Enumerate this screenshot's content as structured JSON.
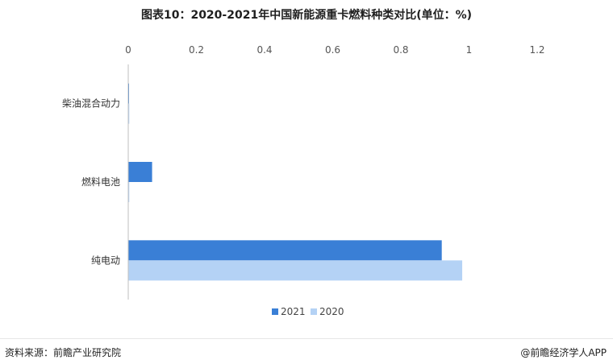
{
  "chart_data": {
    "type": "bar",
    "orientation": "horizontal",
    "title": "图表10：2020-2021年中国新能源重卡燃料种类对比(单位：%)",
    "categories": [
      "柴油混合动力",
      "燃料电池",
      "纯电动"
    ],
    "series": [
      {
        "name": "2021",
        "color": "#3a7fd6",
        "values": [
          0.0,
          0.07,
          0.92
        ]
      },
      {
        "name": "2020",
        "color": "#b4d2f5",
        "values": [
          0.003,
          0.003,
          0.98
        ]
      }
    ],
    "xlim": [
      0,
      1.2
    ],
    "xticks": [
      "0",
      "0.2",
      "0.4",
      "0.6",
      "0.8",
      "1",
      "1.2"
    ],
    "xaxis_position": "top",
    "grid": false,
    "legend_position": "bottom-center"
  },
  "footer": {
    "source": "资料来源：前瞻产业研究院",
    "brand": "@前瞻经济学人APP"
  }
}
